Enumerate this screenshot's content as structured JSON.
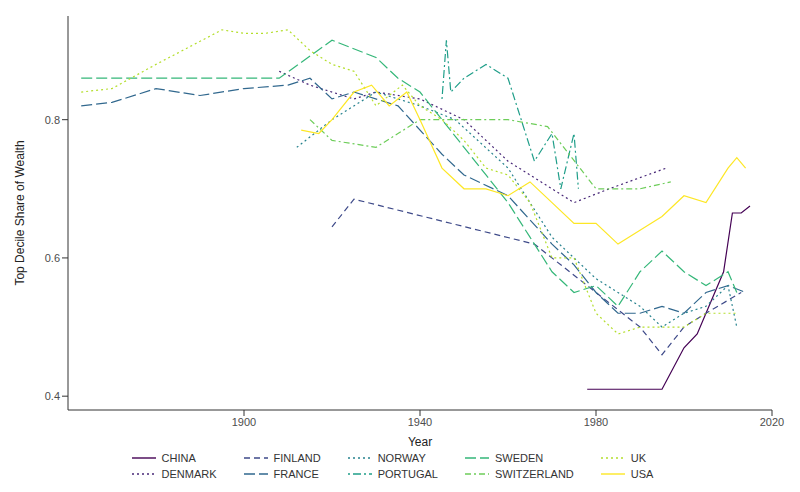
{
  "chart_data": {
    "type": "line",
    "x_label": "Year",
    "y_label": "Top Decile Share of Wealth",
    "xlim": [
      1860,
      2020
    ],
    "xticks": [
      1900,
      1940,
      1980,
      2020
    ],
    "ylim": [
      0.38,
      0.95
    ],
    "yticks": [
      0.4,
      0.6,
      0.8
    ],
    "grid": false,
    "legend": "bottom",
    "series": [
      {
        "name": "CHINA",
        "color": "#440154",
        "line_style": "solid",
        "x": [
          1978,
          1995,
          2000,
          2003,
          2007,
          2009,
          2011,
          2013,
          2015
        ],
        "values": [
          0.41,
          0.41,
          0.47,
          0.49,
          0.55,
          0.58,
          0.665,
          0.665,
          0.675
        ]
      },
      {
        "name": "DENMARK",
        "color": "#482878",
        "line_style": "dotted",
        "x": [
          1908,
          1915,
          1925,
          1930,
          1940,
          1950,
          1960,
          1975,
          1983,
          1996
        ],
        "values": [
          0.87,
          0.85,
          0.83,
          0.84,
          0.83,
          0.8,
          0.74,
          0.68,
          0.7,
          0.73
        ]
      },
      {
        "name": "FINLAND",
        "color": "#3E4A89",
        "line_style": "dashed",
        "x": [
          1920,
          1925,
          1966,
          1980,
          1990,
          1995,
          2000,
          2005,
          2013
        ],
        "values": [
          0.645,
          0.685,
          0.62,
          0.55,
          0.5,
          0.46,
          0.5,
          0.52,
          0.55
        ]
      },
      {
        "name": "FRANCE",
        "color": "#31688E",
        "line_style": "longdash",
        "x": [
          1863,
          1870,
          1880,
          1890,
          1900,
          1910,
          1915,
          1920,
          1925,
          1935,
          1945,
          1950,
          1960,
          1970,
          1975,
          1980,
          1985,
          1990,
          1995,
          2000,
          2005,
          2010,
          2014
        ],
        "values": [
          0.82,
          0.825,
          0.845,
          0.835,
          0.845,
          0.85,
          0.86,
          0.83,
          0.84,
          0.82,
          0.75,
          0.72,
          0.69,
          0.62,
          0.59,
          0.55,
          0.52,
          0.52,
          0.53,
          0.52,
          0.55,
          0.56,
          0.55
        ]
      },
      {
        "name": "NORWAY",
        "color": "#26828E",
        "line_style": "dotted",
        "x": [
          1912,
          1920,
          1930,
          1940,
          1948,
          1960,
          1970,
          1980,
          1985,
          1990,
          1995,
          2000,
          2005,
          2010,
          2012
        ],
        "values": [
          0.76,
          0.8,
          0.84,
          0.82,
          0.8,
          0.73,
          0.63,
          0.57,
          0.55,
          0.53,
          0.5,
          0.52,
          0.53,
          0.56,
          0.5
        ]
      },
      {
        "name": "PORTUGAL",
        "color": "#1F9E89",
        "line_style": "dotdash",
        "x": [
          1945,
          1946,
          1947,
          1950,
          1955,
          1960,
          1963,
          1966,
          1970,
          1972,
          1975,
          1976
        ],
        "values": [
          0.83,
          0.915,
          0.84,
          0.86,
          0.88,
          0.86,
          0.8,
          0.74,
          0.78,
          0.7,
          0.78,
          0.7
        ]
      },
      {
        "name": "SWEDEN",
        "color": "#35B779",
        "line_style": "longdash",
        "x": [
          1863,
          1908,
          1920,
          1930,
          1935,
          1940,
          1945,
          1950,
          1955,
          1960,
          1965,
          1970,
          1975,
          1980,
          1985,
          1990,
          1995,
          2000,
          2005,
          2010,
          2012
        ],
        "values": [
          0.86,
          0.86,
          0.915,
          0.89,
          0.86,
          0.84,
          0.8,
          0.76,
          0.72,
          0.68,
          0.63,
          0.58,
          0.55,
          0.56,
          0.53,
          0.58,
          0.61,
          0.58,
          0.56,
          0.58,
          0.55
        ]
      },
      {
        "name": "SWITZERLAND",
        "color": "#6DCD59",
        "line_style": "twodash",
        "x": [
          1915,
          1920,
          1930,
          1940,
          1950,
          1960,
          1969,
          1980,
          1990,
          1997
        ],
        "values": [
          0.8,
          0.77,
          0.76,
          0.8,
          0.8,
          0.8,
          0.79,
          0.7,
          0.7,
          0.71
        ]
      },
      {
        "name": "UK",
        "color": "#B4DE2C",
        "line_style": "dotted",
        "x": [
          1863,
          1870,
          1880,
          1895,
          1900,
          1905,
          1910,
          1915,
          1920,
          1925,
          1930,
          1936,
          1940,
          1945,
          1950,
          1955,
          1960,
          1965,
          1970,
          1975,
          1980,
          1985,
          1990,
          1995,
          2000,
          2005,
          2010,
          2012
        ],
        "values": [
          0.84,
          0.845,
          0.88,
          0.93,
          0.925,
          0.925,
          0.93,
          0.9,
          0.88,
          0.87,
          0.82,
          0.85,
          0.82,
          0.8,
          0.77,
          0.73,
          0.72,
          0.68,
          0.6,
          0.6,
          0.52,
          0.49,
          0.5,
          0.5,
          0.5,
          0.52,
          0.52,
          0.52
        ]
      },
      {
        "name": "USA",
        "color": "#FDE725",
        "line_style": "solid",
        "x": [
          1913,
          1917,
          1920,
          1925,
          1929,
          1933,
          1937,
          1940,
          1945,
          1950,
          1955,
          1960,
          1965,
          1970,
          1975,
          1980,
          1985,
          1990,
          1995,
          2000,
          2005,
          2010,
          2012,
          2014
        ],
        "values": [
          0.785,
          0.78,
          0.8,
          0.84,
          0.85,
          0.82,
          0.84,
          0.8,
          0.73,
          0.7,
          0.7,
          0.69,
          0.71,
          0.68,
          0.65,
          0.65,
          0.62,
          0.64,
          0.66,
          0.69,
          0.68,
          0.73,
          0.745,
          0.73
        ]
      }
    ]
  }
}
